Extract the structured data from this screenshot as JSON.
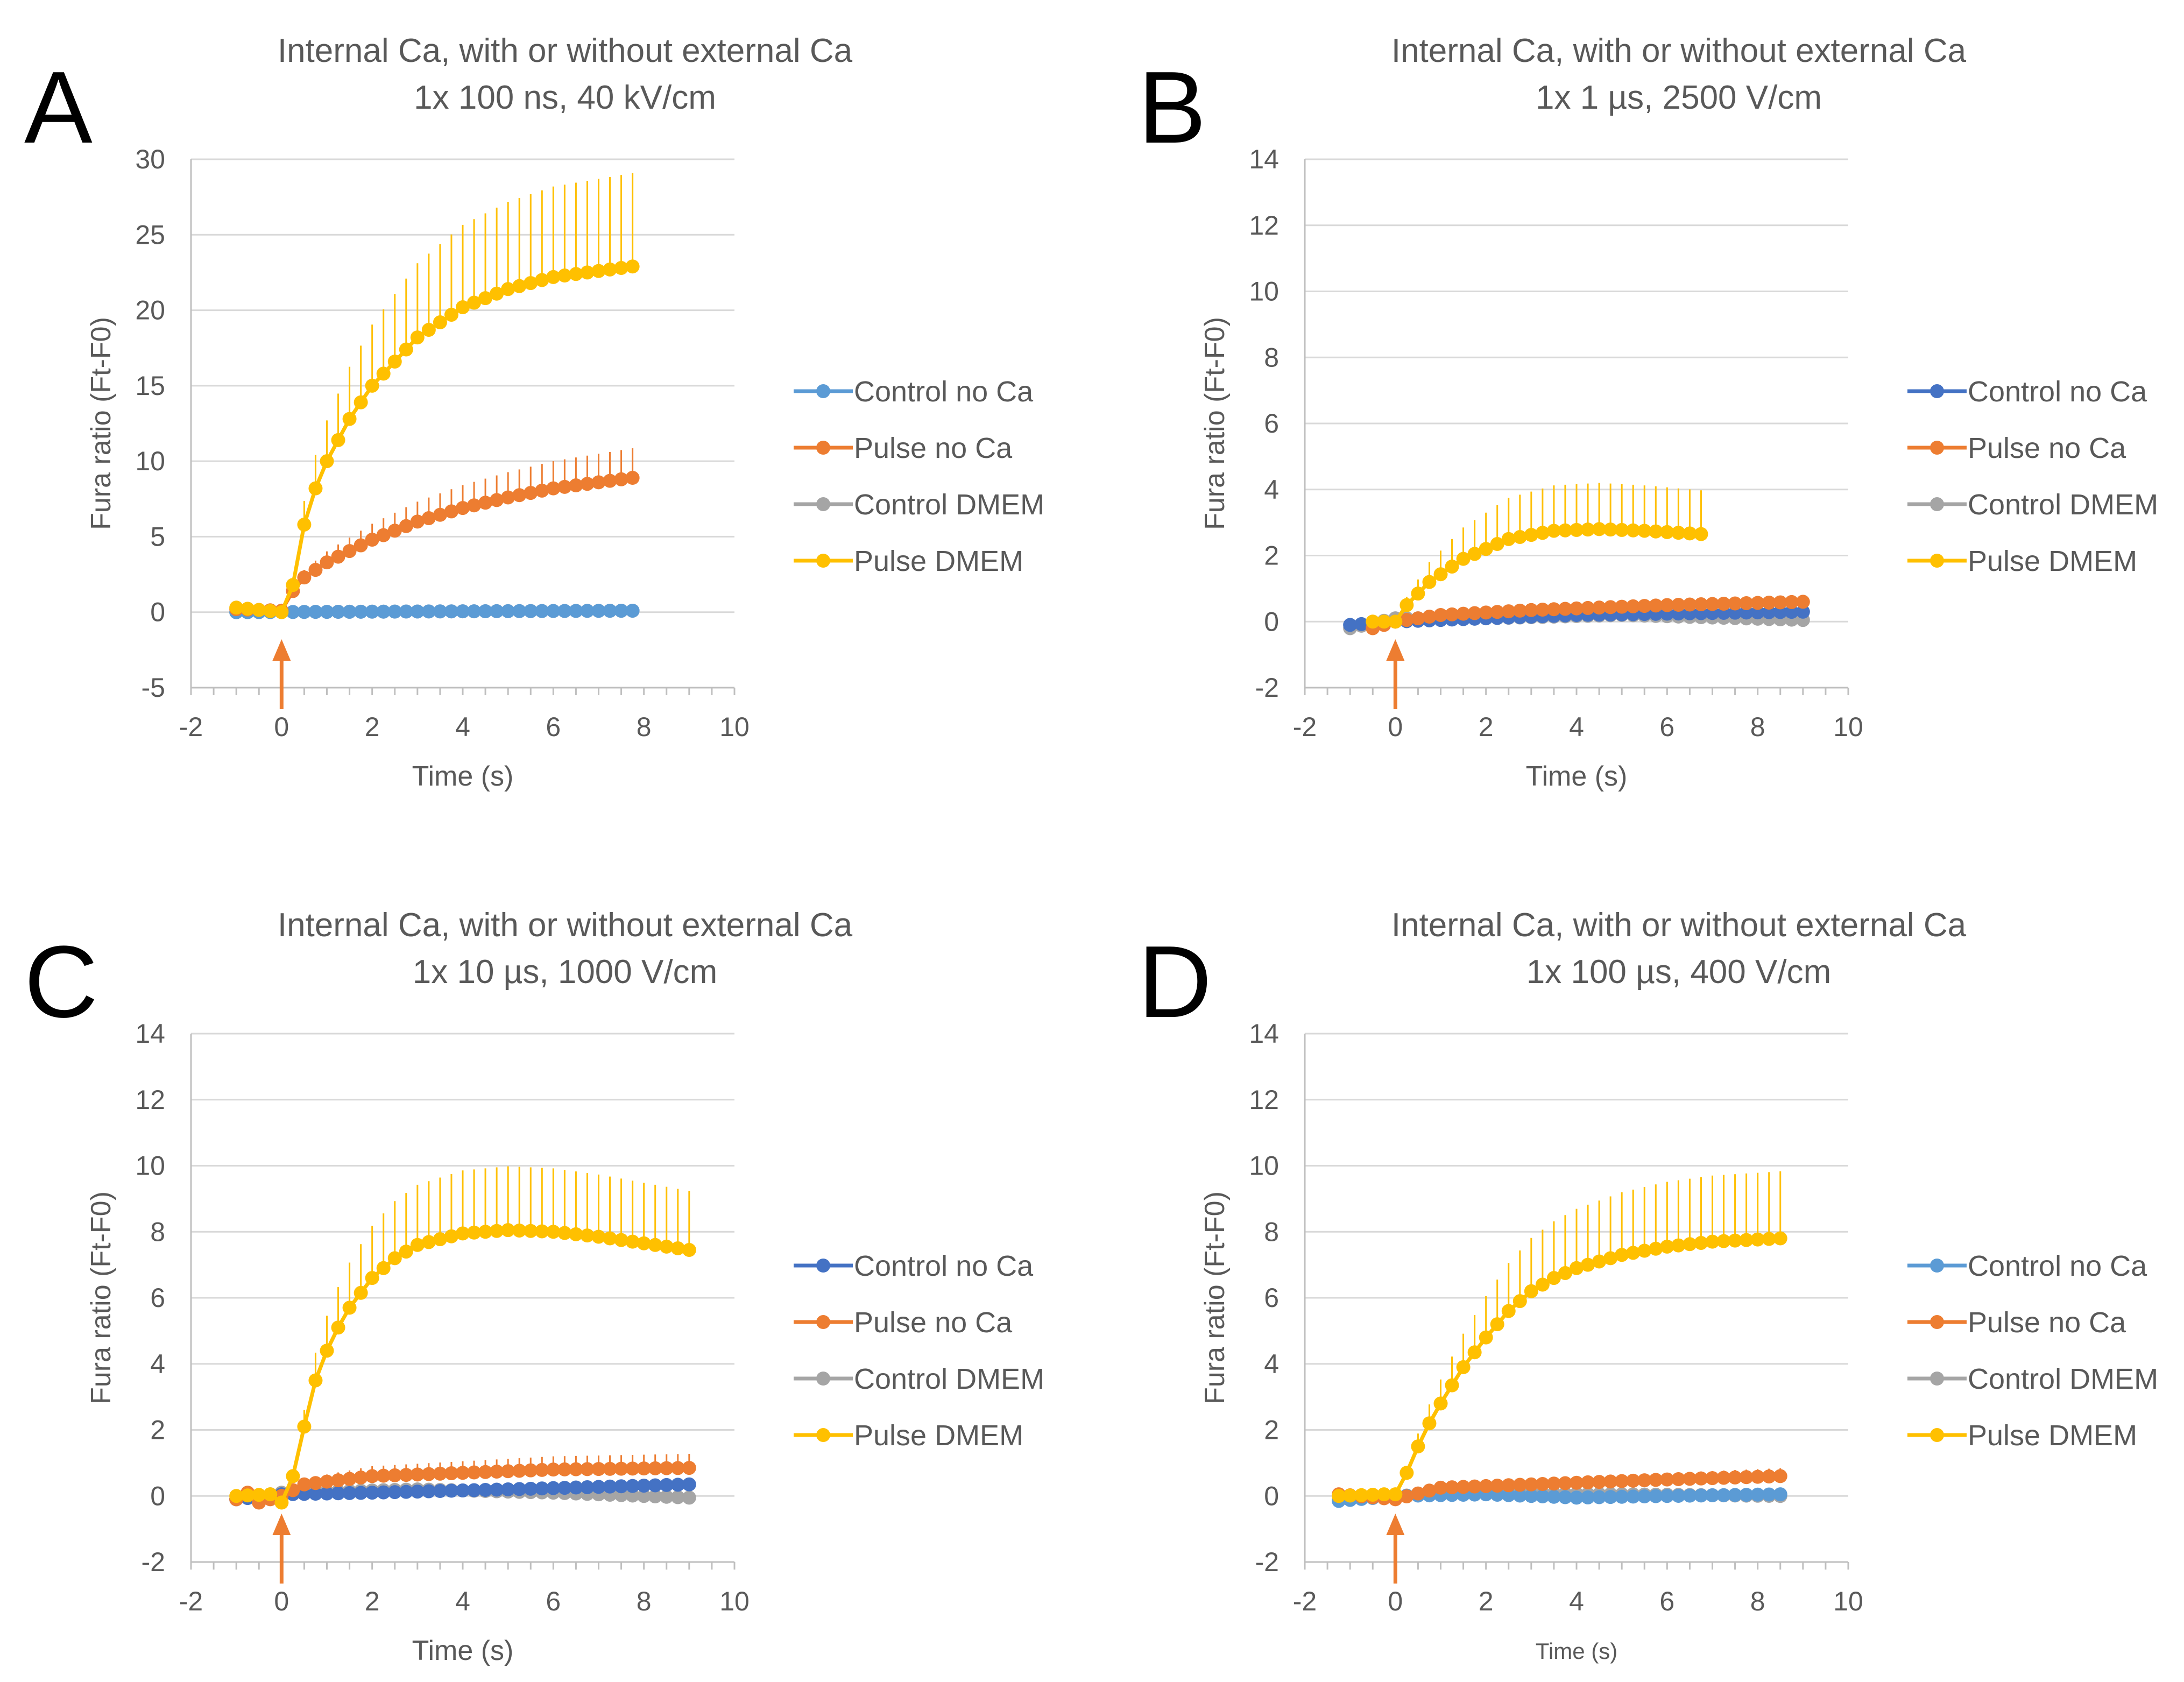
{
  "chart_data": [
    {
      "panel": "A",
      "type": "line",
      "title": "Internal Ca, with or without external Ca",
      "subtitle": "1x 100 ns, 40 kV/cm",
      "xlabel": "Time (s)",
      "ylabel": "Fura ratio (Ft-F0)",
      "xlim": [
        -2,
        10
      ],
      "ylim": [
        -5,
        30
      ],
      "xticks": [
        "-2",
        "0",
        "2",
        "4",
        "6",
        "8",
        "10"
      ],
      "yticks": [
        "-5",
        "0",
        "5",
        "10",
        "15",
        "20",
        "25",
        "30"
      ],
      "arrow_x": 0,
      "legend": [
        "Control no Ca",
        "Pulse no Ca",
        "Control DMEM",
        "Pulse DMEM"
      ],
      "series": [
        {
          "name": "Control no Ca",
          "color": "#5B9BD5",
          "x_start": -1,
          "x_end": 7.75,
          "anchors": [
            [
              -1,
              0
            ],
            [
              8,
              0.1
            ]
          ],
          "error": 0
        },
        {
          "name": "Pulse no Ca",
          "color": "#ED7D31",
          "x_start": -1,
          "x_end": 7.75,
          "anchors": [
            [
              -1,
              0.2
            ],
            [
              0,
              0.1
            ],
            [
              0.25,
              1.4
            ],
            [
              0.5,
              2.3
            ],
            [
              1,
              3.3
            ],
            [
              2,
              4.8
            ],
            [
              3,
              6.0
            ],
            [
              4,
              6.9
            ],
            [
              5,
              7.6
            ],
            [
              6,
              8.2
            ],
            [
              7,
              8.6
            ],
            [
              7.75,
              8.9
            ]
          ],
          "error": 0.22
        },
        {
          "name": "Control DMEM",
          "color": "#A5A5A5",
          "x_start": -1,
          "x_end": 7.75,
          "anchors": [
            [
              -1,
              0
            ],
            [
              8,
              0.1
            ]
          ],
          "error": 0
        },
        {
          "name": "Pulse DMEM",
          "color": "#FFC000",
          "x_start": -1,
          "x_end": 7.75,
          "anchors": [
            [
              -1,
              0.3
            ],
            [
              0,
              0
            ],
            [
              0.25,
              1.8
            ],
            [
              0.5,
              5.8
            ],
            [
              0.75,
              8.2
            ],
            [
              1,
              10
            ],
            [
              1.5,
              12.8
            ],
            [
              2,
              15
            ],
            [
              3,
              18.2
            ],
            [
              4,
              20.2
            ],
            [
              5,
              21.4
            ],
            [
              6,
              22.2
            ],
            [
              7,
              22.6
            ],
            [
              7.75,
              22.9
            ]
          ],
          "error": 0.27
        }
      ]
    },
    {
      "panel": "B",
      "type": "line",
      "title": "Internal Ca, with or without external Ca",
      "subtitle": "1x 1 µs, 2500 V/cm",
      "xlabel": "Time (s)",
      "ylabel": "Fura ratio (Ft-F0)",
      "xlim": [
        -2,
        10
      ],
      "ylim": [
        -2,
        14
      ],
      "xticks": [
        "-2",
        "0",
        "2",
        "4",
        "6",
        "8",
        "10"
      ],
      "yticks": [
        "-2",
        "0",
        "2",
        "4",
        "6",
        "8",
        "10",
        "12",
        "14"
      ],
      "arrow_x": 0,
      "legend": [
        "Control no Ca",
        "Pulse no Ca",
        "Control DMEM",
        "Pulse DMEM"
      ],
      "series": [
        {
          "name": "Control no Ca",
          "color": "#4472C4",
          "x_start": -1,
          "x_end": 9,
          "anchors": [
            [
              -1,
              -0.1
            ],
            [
              0,
              0
            ],
            [
              2,
              0.1
            ],
            [
              4,
              0.2
            ],
            [
              9,
              0.3
            ]
          ],
          "error": 0
        },
        {
          "name": "Pulse no Ca",
          "color": "#ED7D31",
          "x_start": -0.5,
          "x_end": 9,
          "anchors": [
            [
              -0.5,
              -0.2
            ],
            [
              0,
              0
            ],
            [
              1,
              0.2
            ],
            [
              3,
              0.35
            ],
            [
              6,
              0.5
            ],
            [
              9,
              0.6
            ]
          ],
          "error": 0.2
        },
        {
          "name": "Control DMEM",
          "color": "#A5A5A5",
          "x_start": -1,
          "x_end": 9,
          "anchors": [
            [
              -1,
              -0.2
            ],
            [
              0,
              0.1
            ],
            [
              2,
              0.1
            ],
            [
              5,
              0.2
            ],
            [
              9,
              0.05
            ]
          ],
          "error": 0
        },
        {
          "name": "Pulse DMEM",
          "color": "#FFC000",
          "x_start": -0.5,
          "x_end": 6.75,
          "anchors": [
            [
              -0.5,
              0
            ],
            [
              0,
              0
            ],
            [
              0.25,
              0.5
            ],
            [
              0.75,
              1.2
            ],
            [
              1.5,
              1.9
            ],
            [
              2.5,
              2.5
            ],
            [
              3.5,
              2.75
            ],
            [
              4.5,
              2.8
            ],
            [
              5.5,
              2.75
            ],
            [
              6.75,
              2.65
            ]
          ],
          "error": 0.5
        }
      ]
    },
    {
      "panel": "C",
      "type": "line",
      "title": "Internal Ca, with or without external Ca",
      "subtitle": "1x 10 µs, 1000 V/cm",
      "xlabel": "Time (s)",
      "ylabel": "Fura ratio (Ft-F0)",
      "xlim": [
        -2,
        10
      ],
      "ylim": [
        -2,
        14
      ],
      "xticks": [
        "-2",
        "0",
        "2",
        "4",
        "6",
        "8",
        "10"
      ],
      "yticks": [
        "-2",
        "0",
        "2",
        "4",
        "6",
        "8",
        "10",
        "12",
        "14"
      ],
      "arrow_x": 0,
      "legend": [
        "Control no Ca",
        "Pulse no Ca",
        "Control DMEM",
        "Pulse DMEM"
      ],
      "series": [
        {
          "name": "Control no Ca",
          "color": "#4472C4",
          "x_start": -1,
          "x_end": 9,
          "anchors": [
            [
              -1,
              -0.1
            ],
            [
              0,
              0.05
            ],
            [
              2,
              0.1
            ],
            [
              5,
              0.2
            ],
            [
              9,
              0.35
            ]
          ],
          "error": 0
        },
        {
          "name": "Pulse no Ca",
          "color": "#ED7D31",
          "x_start": -1,
          "x_end": 9,
          "anchors": [
            [
              -1,
              -0.1
            ],
            [
              -0.75,
              0.1
            ],
            [
              -0.5,
              -0.2
            ],
            [
              0,
              0
            ],
            [
              0.5,
              0.35
            ],
            [
              2,
              0.6
            ],
            [
              4,
              0.7
            ],
            [
              6,
              0.8
            ],
            [
              9,
              0.85
            ]
          ],
          "error": 0.5
        },
        {
          "name": "Control DMEM",
          "color": "#A5A5A5",
          "x_start": -1,
          "x_end": 9,
          "anchors": [
            [
              -1,
              -0.1
            ],
            [
              0,
              0.1
            ],
            [
              3,
              0.2
            ],
            [
              6,
              0.1
            ],
            [
              9,
              -0.05
            ]
          ],
          "error": 0
        },
        {
          "name": "Pulse DMEM",
          "color": "#FFC000",
          "x_start": -1,
          "x_end": 9,
          "anchors": [
            [
              -1,
              0
            ],
            [
              -0.25,
              0.05
            ],
            [
              0,
              -0.2
            ],
            [
              0.25,
              0.6
            ],
            [
              0.5,
              2.1
            ],
            [
              0.75,
              3.5
            ],
            [
              1,
              4.4
            ],
            [
              1.25,
              5.1
            ],
            [
              1.5,
              5.7
            ],
            [
              2,
              6.6
            ],
            [
              2.5,
              7.2
            ],
            [
              3,
              7.6
            ],
            [
              4,
              7.95
            ],
            [
              5,
              8.05
            ],
            [
              6,
              8.0
            ],
            [
              7,
              7.85
            ],
            [
              8,
              7.65
            ],
            [
              9,
              7.45
            ]
          ],
          "error": 0.24
        }
      ]
    },
    {
      "panel": "D",
      "type": "line",
      "title": "Internal Ca, with or without external Ca",
      "subtitle": "1x 100 µs, 400 V/cm",
      "xlabel": "Time (s)",
      "ylabel": "Fura ratio (Ft-F0)",
      "xlim": [
        -2,
        10
      ],
      "ylim": [
        -2,
        14
      ],
      "xticks": [
        "-2",
        "0",
        "2",
        "4",
        "6",
        "8",
        "10"
      ],
      "yticks": [
        "-2",
        "0",
        "2",
        "4",
        "6",
        "8",
        "10",
        "12",
        "14"
      ],
      "arrow_x": 0,
      "legend": [
        "Control no Ca",
        "Pulse no Ca",
        "Control DMEM",
        "Pulse DMEM"
      ],
      "series": [
        {
          "name": "Control no Ca",
          "color": "#5B9BD5",
          "x_start": -1.25,
          "x_end": 8.5,
          "anchors": [
            [
              -1.25,
              -0.15
            ],
            [
              0,
              0
            ],
            [
              2,
              0.05
            ],
            [
              4,
              -0.05
            ],
            [
              6,
              0
            ],
            [
              8.5,
              0.05
            ]
          ],
          "error": 0
        },
        {
          "name": "Pulse no Ca",
          "color": "#ED7D31",
          "x_start": -1.25,
          "x_end": 8.5,
          "anchors": [
            [
              -1.25,
              0.05
            ],
            [
              0,
              -0.1
            ],
            [
              1,
              0.25
            ],
            [
              3,
              0.35
            ],
            [
              6,
              0.5
            ],
            [
              8.5,
              0.6
            ]
          ],
          "error": 0.4
        },
        {
          "name": "Control DMEM",
          "color": "#A5A5A5",
          "x_start": -1.25,
          "x_end": 8.5,
          "anchors": [
            [
              -1.25,
              -0.1
            ],
            [
              0,
              0
            ],
            [
              2,
              0.1
            ],
            [
              5,
              0.05
            ],
            [
              8.5,
              0.0
            ]
          ],
          "error": 0
        },
        {
          "name": "Pulse DMEM",
          "color": "#FFC000",
          "x_start": -1.25,
          "x_end": 8.5,
          "anchors": [
            [
              -1.25,
              0
            ],
            [
              -0.25,
              0.05
            ],
            [
              0,
              0.05
            ],
            [
              0.25,
              0.7
            ],
            [
              0.5,
              1.5
            ],
            [
              0.75,
              2.2
            ],
            [
              1,
              2.8
            ],
            [
              1.5,
              3.9
            ],
            [
              2,
              4.8
            ],
            [
              2.5,
              5.6
            ],
            [
              3,
              6.2
            ],
            [
              3.5,
              6.6
            ],
            [
              4,
              6.9
            ],
            [
              5,
              7.3
            ],
            [
              6,
              7.55
            ],
            [
              7,
              7.7
            ],
            [
              8.5,
              7.8
            ]
          ],
          "error": 0.26
        }
      ]
    }
  ]
}
